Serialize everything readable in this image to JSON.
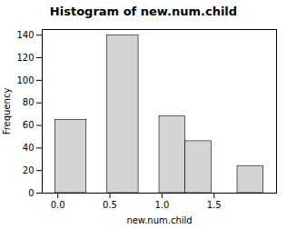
{
  "chart_data": {
    "type": "histogram",
    "title": "Histogram of new.num.child",
    "xlabel": "new.num.child",
    "ylabel": "Frequency",
    "left": [
      -0.025,
      0.475,
      0.975,
      1.225,
      1.725
    ],
    "right": [
      0.275,
      0.775,
      1.225,
      1.475,
      1.975
    ],
    "values": [
      65,
      140,
      68,
      46,
      24
    ],
    "color": "#d3d3d3",
    "xlim": [
      -0.15,
      2.1
    ],
    "xticks": [
      {
        "value": 0.0,
        "label": "0.0"
      },
      0.5,
      {
        "value": 1.0,
        "label": "1.0"
      },
      1.5
    ],
    "ylim": [
      0,
      145
    ],
    "yticks": [
      0,
      20,
      40,
      60,
      80,
      100,
      120,
      140
    ],
    "grid": false
  }
}
